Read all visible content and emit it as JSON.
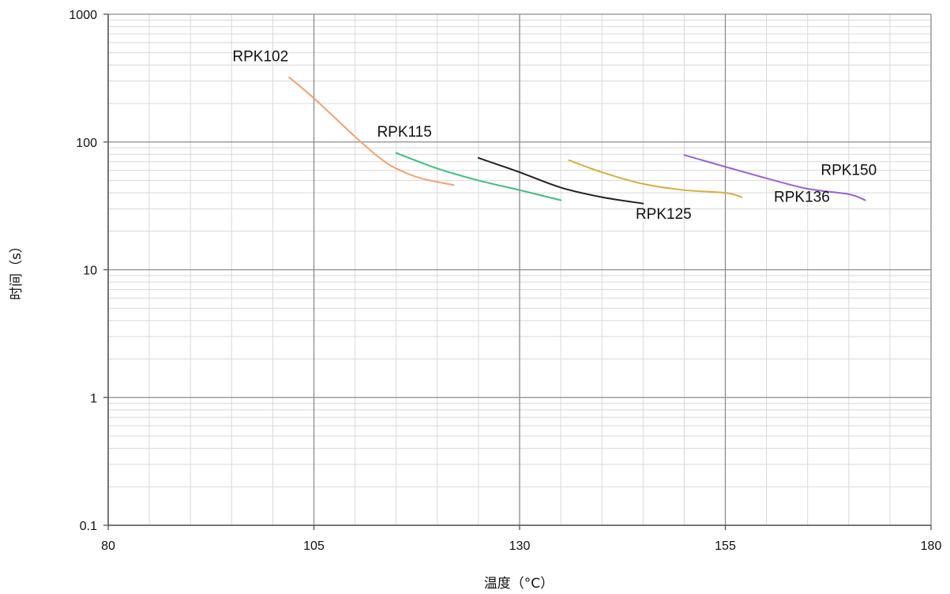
{
  "chart_data": {
    "type": "line",
    "title": "",
    "xlabel": "温度（°C）",
    "ylabel": "时间（s）",
    "xlim": [
      80,
      180
    ],
    "ylim": [
      0.1,
      1000
    ],
    "yscale": "log",
    "grid": true,
    "x_ticks": [
      80,
      105,
      130,
      155,
      180
    ],
    "x_tick_labels": [
      "80",
      "105",
      "130",
      "155",
      "180"
    ],
    "y_ticks": [
      0.1,
      1,
      10,
      100,
      1000
    ],
    "y_tick_labels": [
      "0.1",
      "1",
      "10",
      "100",
      "1000"
    ],
    "series": [
      {
        "name": "RPK102",
        "color": "#f4a06d",
        "points": [
          [
            102,
            320
          ],
          [
            105,
            220
          ],
          [
            110,
            110
          ],
          [
            113,
            75
          ],
          [
            115,
            62
          ],
          [
            118,
            52
          ],
          [
            122,
            46
          ]
        ]
      },
      {
        "name": "RPK115",
        "color": "#3cc07a",
        "points": [
          [
            115,
            82
          ],
          [
            120,
            62
          ],
          [
            125,
            50
          ],
          [
            130,
            42
          ],
          [
            135,
            35
          ]
        ]
      },
      {
        "name": "RPK125",
        "color": "#222222",
        "points": [
          [
            125,
            75
          ],
          [
            130,
            58
          ],
          [
            135,
            44
          ],
          [
            140,
            37
          ],
          [
            145,
            33
          ]
        ]
      },
      {
        "name": "RPK136",
        "color": "#d9ad3c",
        "points": [
          [
            136,
            72
          ],
          [
            140,
            58
          ],
          [
            145,
            47
          ],
          [
            150,
            42
          ],
          [
            155,
            40
          ],
          [
            157,
            37
          ]
        ]
      },
      {
        "name": "RPK150",
        "color": "#9b5fd6",
        "points": [
          [
            150,
            79
          ],
          [
            155,
            64
          ],
          [
            160,
            52
          ],
          [
            165,
            43
          ],
          [
            170,
            39
          ],
          [
            172,
            35
          ]
        ]
      }
    ],
    "annotations": [
      {
        "text": "RPK102",
        "x": 98.5,
        "y": 430
      },
      {
        "text": "RPK115",
        "x": 116,
        "y": 110
      },
      {
        "text": "RPK125",
        "x": 147.5,
        "y": 25
      },
      {
        "text": "RPK136",
        "x": 164.3,
        "y": 34
      },
      {
        "text": "RPK150",
        "x": 170,
        "y": 55
      }
    ]
  }
}
